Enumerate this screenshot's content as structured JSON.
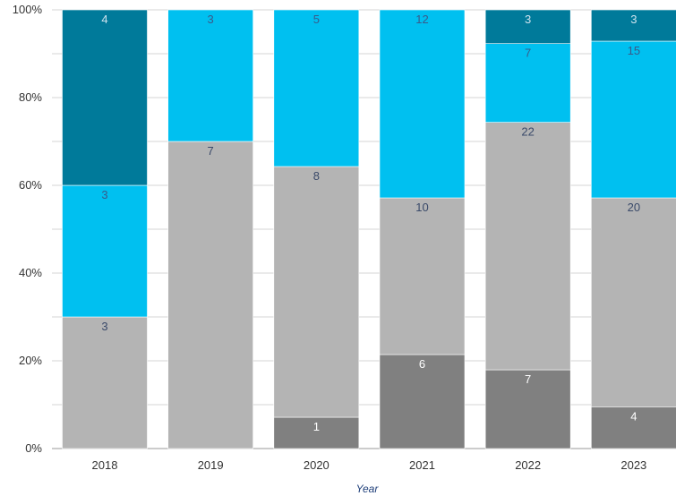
{
  "chart_data": {
    "type": "bar",
    "stacked": true,
    "normalized": true,
    "categories": [
      "2018",
      "2019",
      "2020",
      "2021",
      "2022",
      "2023"
    ],
    "series": [
      {
        "values": [
          0,
          0,
          1,
          6,
          7,
          4
        ],
        "color": "#808080",
        "label_color": "#ffffff"
      },
      {
        "values": [
          3,
          7,
          8,
          10,
          22,
          20
        ],
        "color": "#b4b4b4",
        "label_color": "#3a4a6a"
      },
      {
        "values": [
          3,
          3,
          5,
          12,
          7,
          15
        ],
        "color": "#00c0f0",
        "label_color": "#3a5a8a"
      },
      {
        "values": [
          4,
          0,
          0,
          0,
          3,
          3
        ],
        "color": "#007a9a",
        "label_color": "#cfe3ee"
      }
    ],
    "y_ticks": [
      "0%",
      "20%",
      "40%",
      "60%",
      "80%",
      "100%"
    ],
    "ylim": [
      0,
      100
    ],
    "xlabel": "Year",
    "ylabel": "",
    "title": "",
    "grid": true,
    "legend": "none"
  }
}
